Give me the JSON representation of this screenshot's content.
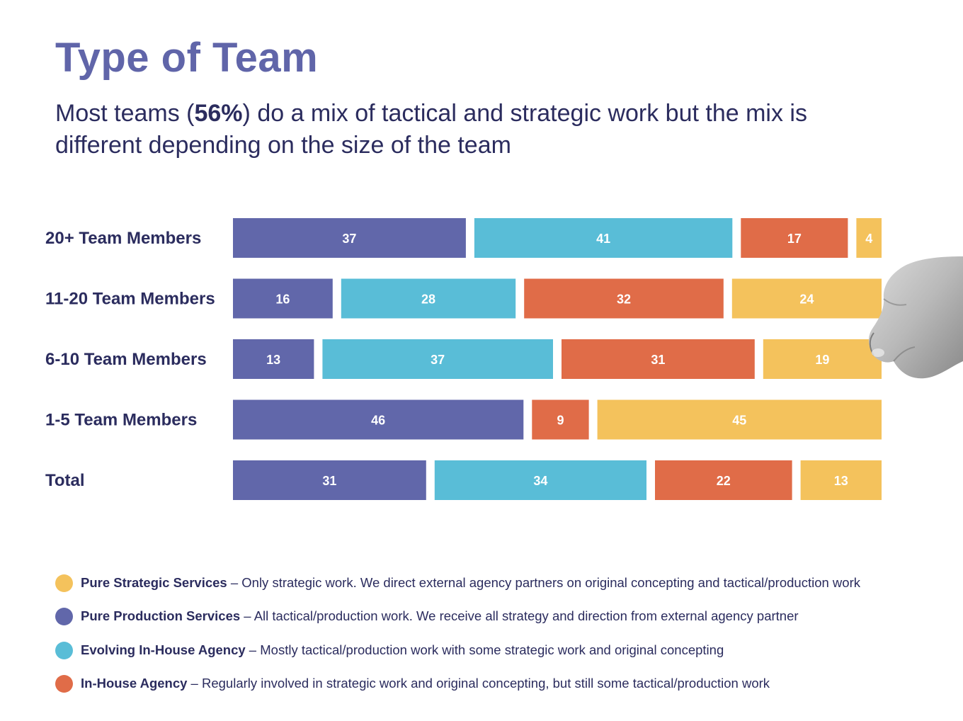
{
  "title": "Type of Team",
  "subtitle": {
    "before": "Most teams (",
    "highlight": "56%",
    "after": ") do a mix of tactical and strategic work but the mix is different depending on the size of the team"
  },
  "colors": {
    "production": "#6167aa",
    "evolving": "#59bdd7",
    "inhouse": "#e06c48",
    "strategic": "#f4c25c",
    "text_dark": "#2b2c5e",
    "title": "#6065a9"
  },
  "chart_data": {
    "type": "bar",
    "orientation": "horizontal",
    "stacked": true,
    "categories": [
      "20+ Team Members",
      "11-20 Team Members",
      "6-10 Team Members",
      "1-5 Team Members",
      "Total"
    ],
    "series": [
      {
        "key": "production",
        "values": [
          37,
          16,
          13,
          46,
          31
        ]
      },
      {
        "key": "evolving",
        "values": [
          41,
          28,
          37,
          0,
          34
        ]
      },
      {
        "key": "inhouse",
        "values": [
          17,
          32,
          31,
          9,
          22
        ]
      },
      {
        "key": "strategic",
        "values": [
          4,
          24,
          19,
          45,
          13
        ]
      }
    ],
    "xlim": [
      0,
      100
    ],
    "grid": false,
    "legend_position": "bottom"
  },
  "legend": [
    {
      "key": "strategic",
      "name": "Pure Strategic Services",
      "description": "– Only strategic work. We direct external agency partners on original concepting and tactical/production work"
    },
    {
      "key": "production",
      "name": "Pure Production Services",
      "description": "– All tactical/production work. We receive all strategy and direction from external agency partner"
    },
    {
      "key": "evolving",
      "name": "Evolving In-House Agency",
      "description": "– Mostly tactical/production work with some strategic work and original concepting"
    },
    {
      "key": "inhouse",
      "name": "In-House Agency",
      "description": "– Regularly involved in strategic work and original concepting, but still some tactical/production work"
    }
  ]
}
